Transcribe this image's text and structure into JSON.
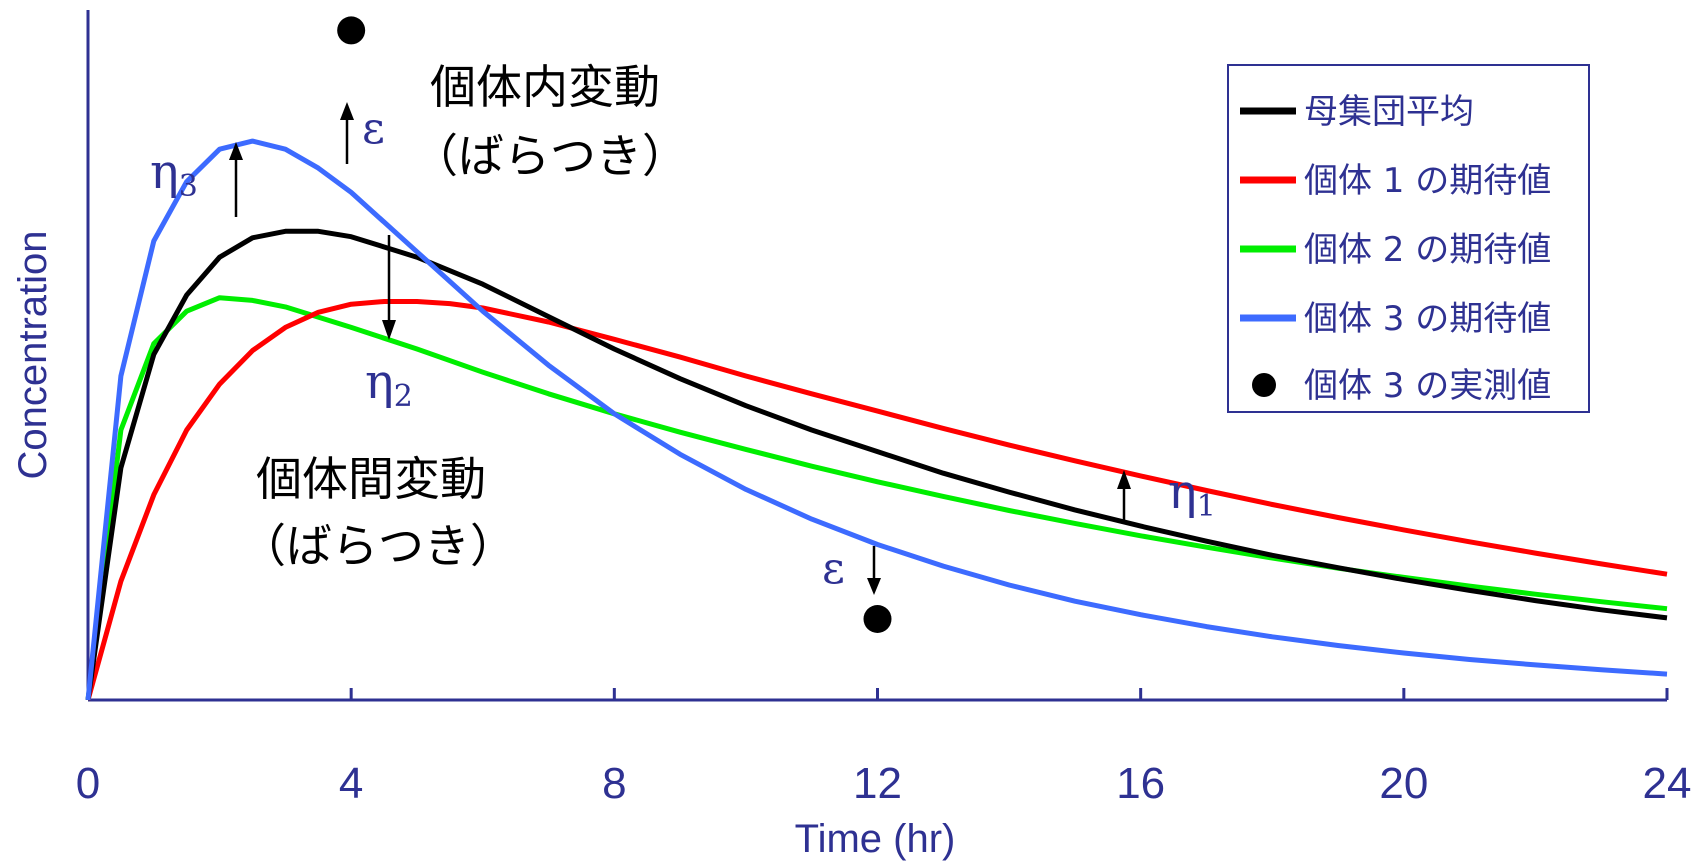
{
  "chart_data": {
    "type": "line",
    "xlabel": "Time (hr)",
    "ylabel": "Concentration",
    "xlim": [
      0,
      24
    ],
    "ylim": [
      0,
      1
    ],
    "xticks": [
      "0",
      "4",
      "8",
      "12",
      "16",
      "20",
      "24"
    ],
    "grid": false,
    "legend_position": "top-right",
    "series": [
      {
        "name": "母集団平均",
        "color": "#000000",
        "x": [
          0,
          0.5,
          1,
          1.5,
          2,
          2.5,
          3,
          3.5,
          4,
          5,
          6,
          7,
          8,
          9,
          10,
          11,
          12,
          13,
          14,
          15,
          16,
          17,
          18,
          19,
          20,
          21,
          22,
          23,
          24
        ],
        "y": [
          0.0,
          0.43,
          0.64,
          0.75,
          0.82,
          0.856,
          0.868,
          0.868,
          0.858,
          0.82,
          0.77,
          0.71,
          0.65,
          0.595,
          0.545,
          0.5,
          0.46,
          0.42,
          0.385,
          0.352,
          0.322,
          0.294,
          0.268,
          0.245,
          0.223,
          0.203,
          0.184,
          0.167,
          0.152
        ]
      },
      {
        "name": "個体 1 の期待値",
        "color": "#ff0000",
        "x": [
          0,
          0.5,
          1,
          1.5,
          2,
          2.5,
          3,
          3.5,
          4,
          4.5,
          5,
          5.5,
          6,
          7,
          8,
          9,
          10,
          11,
          12,
          13,
          14,
          15,
          16,
          17,
          18,
          19,
          20,
          21,
          22,
          23,
          24
        ],
        "y": [
          0.0,
          0.22,
          0.38,
          0.5,
          0.585,
          0.647,
          0.69,
          0.718,
          0.733,
          0.738,
          0.738,
          0.734,
          0.726,
          0.7,
          0.668,
          0.635,
          0.6,
          0.567,
          0.535,
          0.503,
          0.472,
          0.443,
          0.415,
          0.388,
          0.362,
          0.338,
          0.315,
          0.293,
          0.272,
          0.252,
          0.233
        ]
      },
      {
        "name": "個体 2 の期待値",
        "color": "#00ee00",
        "x": [
          0,
          0.5,
          1,
          1.5,
          2,
          2.5,
          3,
          4,
          5,
          6,
          7,
          8,
          9,
          10,
          11,
          12,
          13,
          14,
          15,
          16,
          17,
          18,
          19,
          20,
          21,
          22,
          23,
          24
        ],
        "y": [
          0.0,
          0.5,
          0.66,
          0.72,
          0.745,
          0.74,
          0.728,
          0.69,
          0.65,
          0.607,
          0.567,
          0.53,
          0.496,
          0.464,
          0.433,
          0.404,
          0.377,
          0.351,
          0.327,
          0.304,
          0.283,
          0.263,
          0.244,
          0.227,
          0.211,
          0.196,
          0.182,
          0.169
        ]
      },
      {
        "name": "個体 3 の期待値",
        "color": "#3d6bff",
        "x": [
          0,
          0.5,
          1,
          1.5,
          2,
          2.5,
          3,
          3.5,
          4,
          5,
          6,
          7,
          8,
          9,
          10,
          11,
          12,
          13,
          14,
          15,
          16,
          17,
          18,
          19,
          20,
          21,
          22,
          23,
          24
        ],
        "y": [
          0.0,
          0.6,
          0.85,
          0.96,
          1.02,
          1.035,
          1.02,
          0.985,
          0.94,
          0.83,
          0.72,
          0.62,
          0.53,
          0.455,
          0.39,
          0.335,
          0.288,
          0.248,
          0.213,
          0.183,
          0.158,
          0.136,
          0.117,
          0.101,
          0.087,
          0.075,
          0.065,
          0.056,
          0.048
        ]
      }
    ],
    "observations": [
      {
        "name": "個体 3 の実測値",
        "color": "#000000",
        "points": [
          {
            "x": 4,
            "y": 1.24
          },
          {
            "x": 12,
            "y": 0.15
          }
        ]
      }
    ],
    "annotations": {
      "intra_title": "個体内変動",
      "intra_sub": "（ばらつき）",
      "inter_title": "個体間変動",
      "inter_sub": "（ばらつき）",
      "eta1": "η",
      "eta1_sub": "1",
      "eta2": "η",
      "eta2_sub": "2",
      "eta3": "η",
      "eta3_sub": "3",
      "eps_top": "ε",
      "eps_bottom": "ε"
    }
  }
}
